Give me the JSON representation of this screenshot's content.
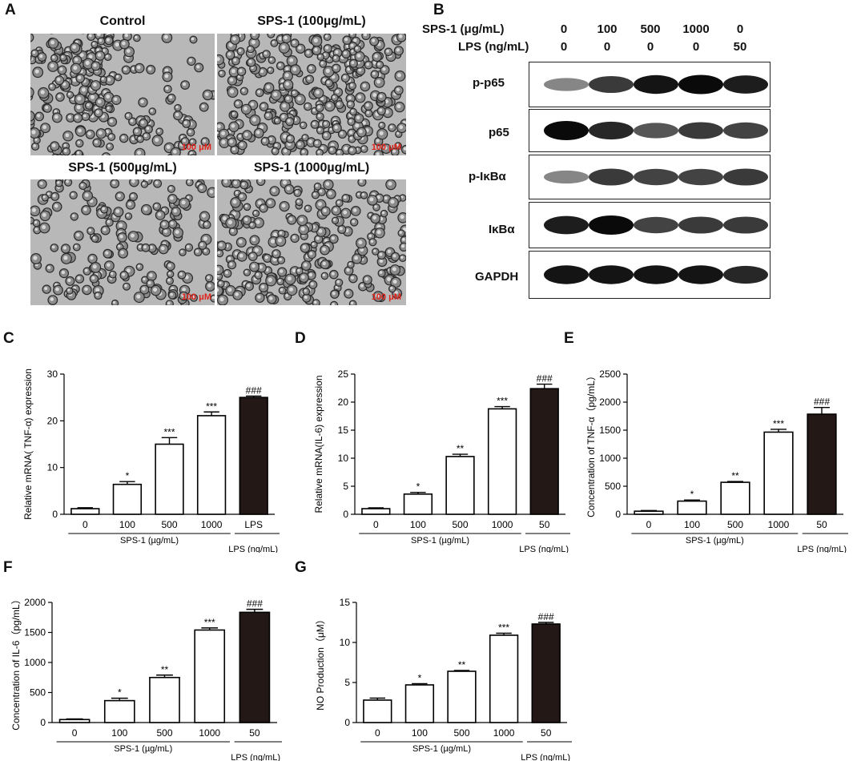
{
  "panels": {
    "A": {
      "label": "A",
      "titles": [
        "Control",
        "SPS-1 (100µg/mL)",
        "SPS-1 (500µg/mL)",
        "SPS-1 (1000µg/mL)"
      ],
      "scale_bar": "100 μM"
    },
    "B": {
      "label": "B",
      "header_rows": [
        {
          "label": "SPS-1 (μg/mL)",
          "values": [
            "0",
            "100",
            "500",
            "1000",
            "0"
          ]
        },
        {
          "label": "LPS (ng/mL)",
          "values": [
            "0",
            "0",
            "0",
            "0",
            "50"
          ]
        }
      ],
      "blots": [
        {
          "name": "p-p65",
          "intensity": [
            0.35,
            0.75,
            0.95,
            1.0,
            0.9
          ]
        },
        {
          "name": "p65",
          "intensity": [
            1.0,
            0.85,
            0.6,
            0.75,
            0.7
          ]
        },
        {
          "name": "p-IκBα",
          "intensity": [
            0.35,
            0.75,
            0.7,
            0.7,
            0.75
          ]
        },
        {
          "name": "IκBα",
          "intensity": [
            0.9,
            1.0,
            0.7,
            0.75,
            0.75
          ]
        },
        {
          "name": "GAPDH",
          "intensity": [
            0.95,
            0.95,
            0.95,
            0.95,
            0.85
          ]
        }
      ]
    }
  },
  "chart_data": [
    {
      "panel": "C",
      "type": "bar",
      "ylabel": "Relative mRNA( TNF-α) expression",
      "categories": [
        "0",
        "100",
        "500",
        "1000",
        "LPS"
      ],
      "values": [
        1.2,
        6.4,
        15.0,
        21.1,
        25.0
      ],
      "errors": [
        0.2,
        0.6,
        1.4,
        0.8,
        0.3
      ],
      "sig": [
        "",
        "*",
        "***",
        "***",
        "###"
      ],
      "ylim": [
        0,
        30
      ],
      "yticks": [
        "0",
        "10",
        "20",
        "30"
      ],
      "group_label": "SPS-1 (µg/mL)",
      "lps_label": "LPS (ng/mL)"
    },
    {
      "panel": "D",
      "type": "bar",
      "ylabel": "Relative mRNA(IL-6) expression",
      "categories": [
        "0",
        "100",
        "500",
        "1000",
        "50"
      ],
      "values": [
        1.0,
        3.6,
        10.3,
        18.8,
        22.4
      ],
      "errors": [
        0.15,
        0.3,
        0.4,
        0.4,
        0.8
      ],
      "sig": [
        "",
        "*",
        "**",
        "***",
        "###"
      ],
      "ylim": [
        0,
        25
      ],
      "yticks": [
        "0",
        "5",
        "10",
        "15",
        "20",
        "25"
      ],
      "group_label": "SPS-1 (µg/mL)",
      "lps_label": "LPS (ng/mL)"
    },
    {
      "panel": "E",
      "type": "bar",
      "ylabel": "Concentration of TNF-α（pg/mL）",
      "categories": [
        "0",
        "100",
        "500",
        "1000",
        "50"
      ],
      "values": [
        55,
        235,
        570,
        1465,
        1785
      ],
      "errors": [
        12,
        20,
        15,
        50,
        120
      ],
      "sig": [
        "",
        "*",
        "**",
        "***",
        "###"
      ],
      "ylim": [
        0,
        2500
      ],
      "yticks": [
        "0",
        "500",
        "1000",
        "1500",
        "2000",
        "2500"
      ],
      "group_label": "SPS-1 (µg/mL)",
      "lps_label": "LPS (ng/mL)"
    },
    {
      "panel": "F",
      "type": "bar",
      "ylabel": "Concentration of IL-6（pg/mL）",
      "categories": [
        "0",
        "100",
        "500",
        "1000",
        "50"
      ],
      "values": [
        50,
        365,
        750,
        1540,
        1835
      ],
      "errors": [
        10,
        40,
        40,
        35,
        50
      ],
      "sig": [
        "",
        "*",
        "**",
        "***",
        "###"
      ],
      "ylim": [
        0,
        2000
      ],
      "yticks": [
        "0",
        "500",
        "1000",
        "1500",
        "2000"
      ],
      "group_label": "SPS-1 (µg/mL)",
      "lps_label": "LPS (ng/mL)"
    },
    {
      "panel": "G",
      "type": "bar",
      "ylabel": "NO Production（μM）",
      "categories": [
        "0",
        "100",
        "500",
        "1000",
        "50"
      ],
      "values": [
        2.8,
        4.7,
        6.4,
        10.9,
        12.3
      ],
      "errors": [
        0.25,
        0.15,
        0.1,
        0.25,
        0.2
      ],
      "sig": [
        "",
        "*",
        "**",
        "***",
        "###"
      ],
      "ylim": [
        0,
        15
      ],
      "yticks": [
        "0",
        "5",
        "10",
        "15"
      ],
      "group_label": "SPS-1 (µg/mL)",
      "lps_label": "LPS (ng/mL)"
    }
  ],
  "chart_panel_labels": [
    "C",
    "D",
    "E",
    "F",
    "G"
  ],
  "colors": {
    "bar_open": "#ffffff",
    "bar_lps": "#231815",
    "scale_text": "#e0241b"
  }
}
